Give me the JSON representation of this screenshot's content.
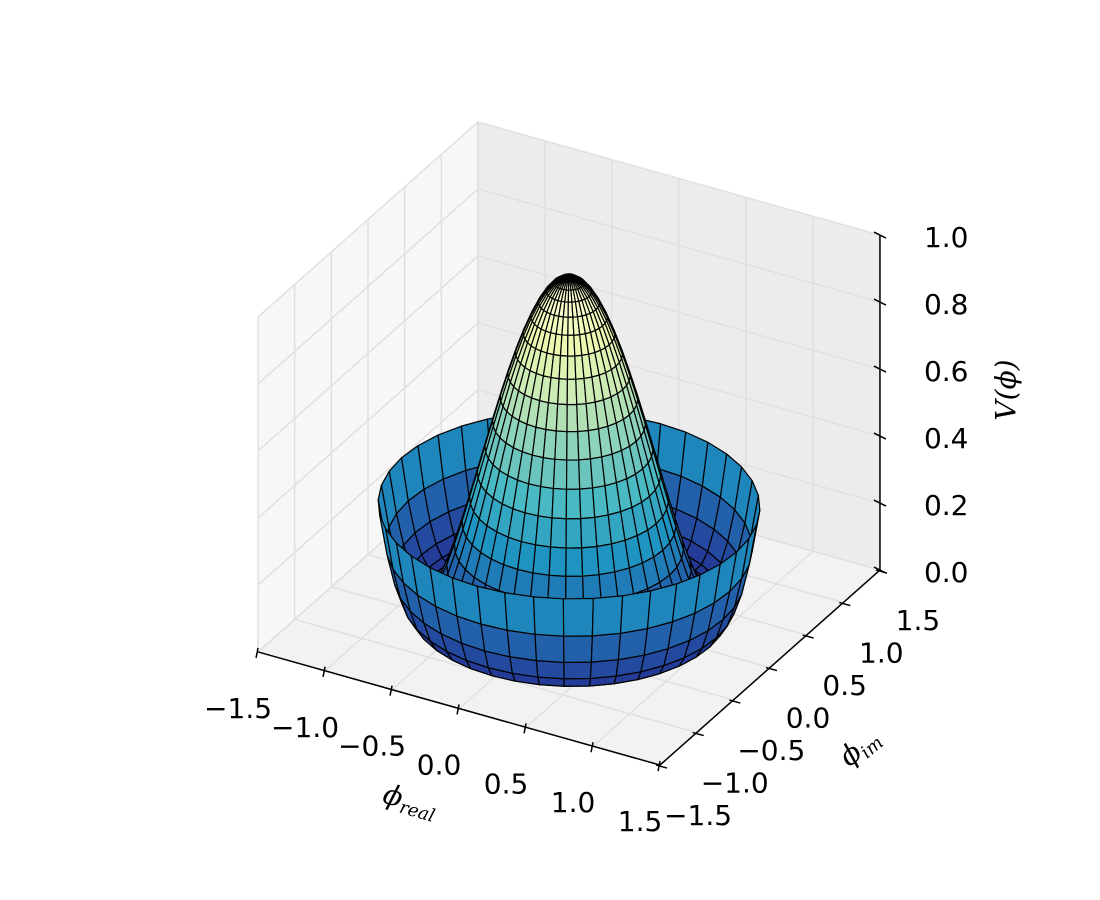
{
  "chart_data": {
    "type": "surface",
    "xlabel": {
      "text": "ϕ",
      "subscript": "real"
    },
    "ylabel": {
      "text": "ϕ",
      "subscript": "im"
    },
    "zlabel": "V(ϕ)",
    "r": [
      0,
      0.05,
      0.1,
      0.15,
      0.2,
      0.25,
      0.3,
      0.35,
      0.4,
      0.45,
      0.5,
      0.55,
      0.6,
      0.65,
      0.7,
      0.75,
      0.8,
      0.85,
      0.9,
      0.95,
      1,
      1.05,
      1.1,
      1.15,
      1.2,
      1.25
    ],
    "values": [
      1,
      0.995,
      0.9801,
      0.9555,
      0.9216,
      0.8789,
      0.8281,
      0.77,
      0.7056,
      0.636,
      0.5625,
      0.4865,
      0.4096,
      0.3335,
      0.2601,
      0.1914,
      0.1296,
      0.077,
      0.0361,
      0.0095,
      0,
      0.0105,
      0.0441,
      0.104,
      0.1936,
      0.3164
    ],
    "colormap": [
      "#253494",
      "#225ea8",
      "#1d91c0",
      "#41b6c4",
      "#7fcdbb",
      "#c7e9b4",
      "#edf8b1",
      "#ffffd9"
    ],
    "xlim": [
      -1.5,
      1.5
    ],
    "xticks": [
      {
        "value": -1.5,
        "label": "−1.5"
      },
      {
        "value": -1.0,
        "label": "−1.0"
      },
      {
        "value": -0.5,
        "label": "−0.5"
      },
      {
        "value": 0,
        "label": "0.0"
      },
      0.5,
      {
        "value": 1.0,
        "label": "1.0"
      },
      1.5
    ],
    "ylim": [
      -1.5,
      1.5
    ],
    "yticks": [
      {
        "value": -1.5,
        "label": "−1.5"
      },
      {
        "value": -1.0,
        "label": "−1.0"
      },
      {
        "value": -0.5,
        "label": "−0.5"
      },
      {
        "value": 0,
        "label": "0.0"
      },
      0.5,
      {
        "value": 1.0,
        "label": "1.0"
      },
      1.5
    ],
    "zlim": [
      0,
      1
    ],
    "zticks": [
      {
        "value": 0,
        "label": "0.0"
      },
      0.2,
      0.4,
      0.6,
      0.8,
      {
        "value": 1.0,
        "label": "1.0"
      }
    ],
    "grid": true
  }
}
